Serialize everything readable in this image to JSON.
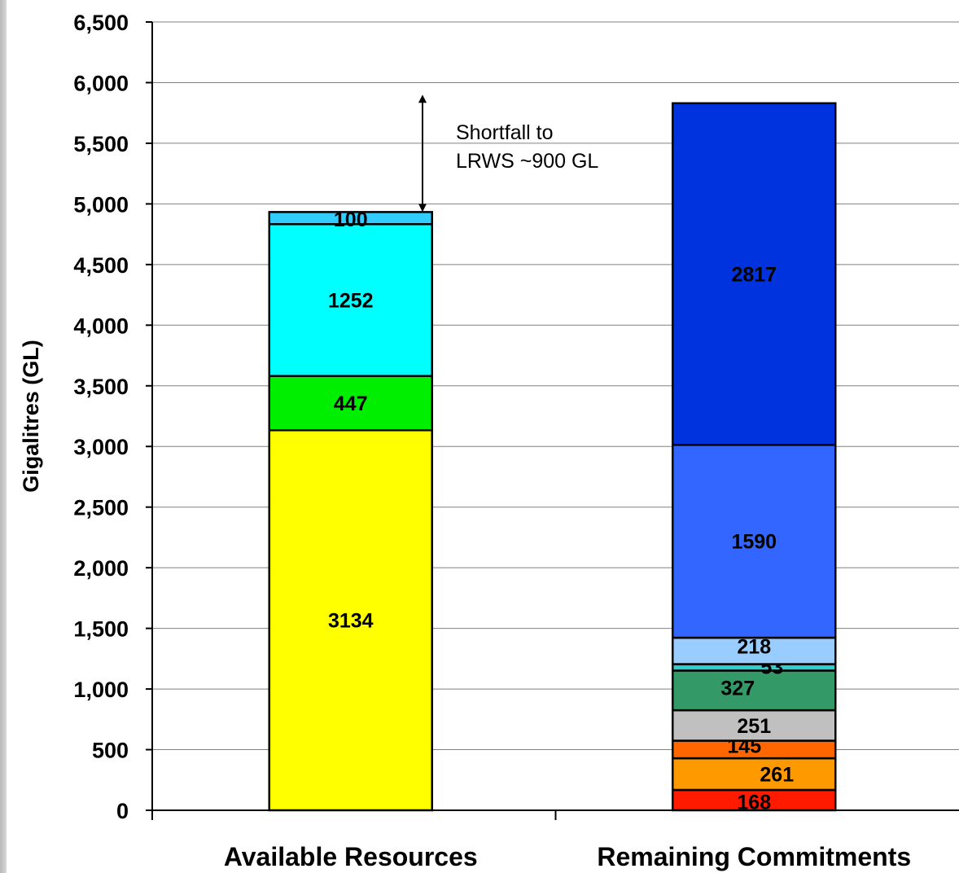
{
  "chart_data": {
    "type": "bar",
    "stacked": true,
    "ylabel": "Gigalitres (GL)",
    "ylim": [
      0,
      6500
    ],
    "yticks": [
      0,
      500,
      1000,
      1500,
      2000,
      2500,
      3000,
      3500,
      4000,
      4500,
      5000,
      5500,
      6000,
      6500
    ],
    "ytick_labels": [
      "0",
      "500",
      "1,000",
      "1,500",
      "2,000",
      "2,500",
      "3,000",
      "3,500",
      "4,000",
      "4,500",
      "5,000",
      "5,500",
      "6,000",
      "6,500"
    ],
    "grid": true,
    "legend": "none",
    "categories": [
      "Available Resources",
      "Remaining Commitments"
    ],
    "bars": [
      {
        "category": "Available Resources",
        "segments": [
          {
            "value": 3134,
            "label": "3134",
            "color": "#FFFF00"
          },
          {
            "value": 447,
            "label": "447",
            "color": "#00EE00"
          },
          {
            "value": 1252,
            "label": "1252",
            "color": "#00FFFF"
          },
          {
            "value": 100,
            "label": "100",
            "color": "#33CCFF"
          }
        ]
      },
      {
        "category": "Remaining Commitments",
        "segments": [
          {
            "value": 168,
            "label": "168",
            "color": "#FF1A00"
          },
          {
            "value": 261,
            "label": "261",
            "color": "#FF9900"
          },
          {
            "value": 145,
            "label": "145",
            "color": "#FF6600"
          },
          {
            "value": 251,
            "label": "251",
            "color": "#C0C0C0"
          },
          {
            "value": 327,
            "label": "327",
            "color": "#339966"
          },
          {
            "value": 53,
            "label": "53",
            "color": "#33CCCC"
          },
          {
            "value": 218,
            "label": "218",
            "color": "#99CCFF"
          },
          {
            "value": 1590,
            "label": "1590",
            "color": "#3366FF"
          },
          {
            "value": 2817,
            "label": "2817",
            "color": "#0033DD"
          }
        ]
      }
    ],
    "annotation": {
      "lines": [
        "Shortfall to",
        "LRWS ~900 GL"
      ],
      "arrow_from": 4940,
      "arrow_to": 5840
    }
  }
}
